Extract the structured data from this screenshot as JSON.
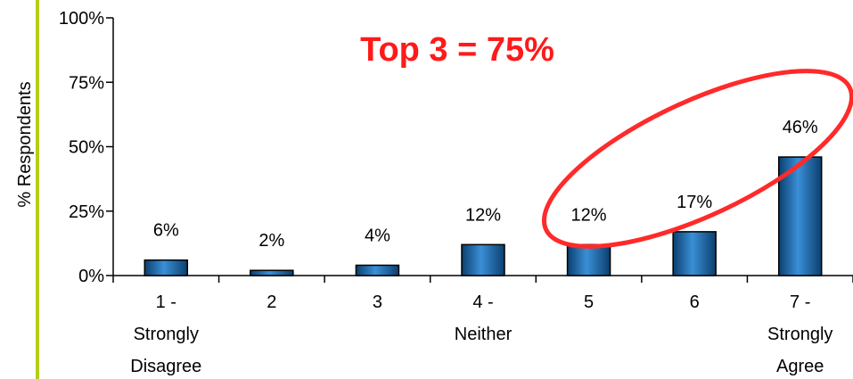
{
  "chart_data": {
    "type": "bar",
    "categories": [
      [
        "1 -",
        "Strongly",
        "Disagree"
      ],
      [
        "2"
      ],
      [
        "3"
      ],
      [
        "4 -",
        "Neither"
      ],
      [
        "5"
      ],
      [
        "6"
      ],
      [
        "7 -",
        "Strongly",
        "Agree"
      ]
    ],
    "values": [
      6,
      2,
      4,
      12,
      12,
      17,
      46
    ],
    "data_labels": [
      "6%",
      "2%",
      "4%",
      "12%",
      "12%",
      "17%",
      "46%"
    ],
    "ylabel": "% Respondents",
    "yticks": [
      0,
      25,
      50,
      75,
      100
    ],
    "ytick_labels": [
      "0%",
      "25%",
      "50%",
      "75%",
      "100%"
    ],
    "ylim": [
      0,
      100
    ],
    "grid": false,
    "bar_color": "#1f6fb2",
    "annotation": {
      "text": "Top 3 = 75%",
      "color": "#ff2a2a",
      "highlighted_categories": [
        4,
        5,
        6
      ]
    }
  }
}
